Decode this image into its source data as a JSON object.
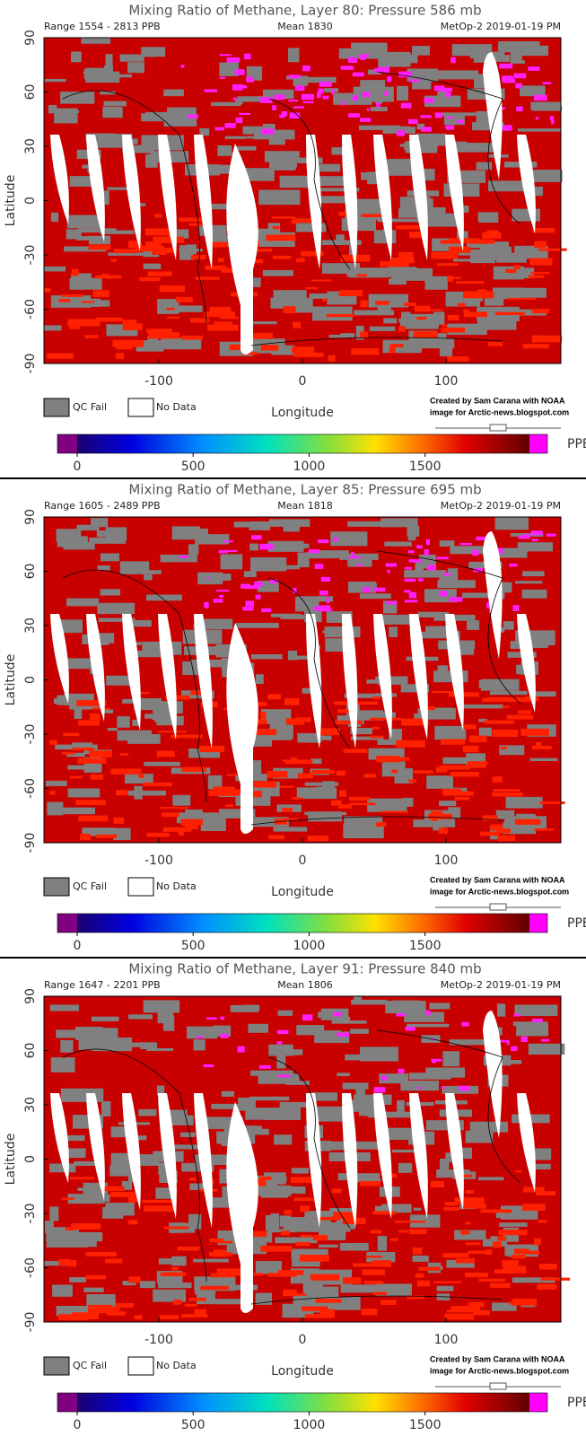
{
  "panels": [
    {
      "title": "Mixing Ratio of Methane, Layer 80: Pressure 586 mb",
      "range": "Range 1554 - 2813 PPB",
      "mean": "Mean 1830",
      "source": "MetOp-2 2019-01-19 PM",
      "x_label": "Longitude",
      "y_label": "Latitude",
      "xlim": [
        -180,
        180
      ],
      "ylim": [
        -90,
        90
      ],
      "xticks": [
        -100,
        0,
        100
      ],
      "yticks": [
        90,
        60,
        30,
        0,
        -30,
        -60,
        -90
      ],
      "legend": [
        "QC Fail",
        "No Data"
      ],
      "credit": [
        "Created by Sam Carana with NOAA",
        "image for Arctic-news.blogspot.com"
      ],
      "colorbar_lim": [
        0,
        1950
      ],
      "colorbar_ticks": [
        0,
        500,
        1000,
        1500
      ],
      "colorbar_unit": "PPB"
    },
    {
      "title": "Mixing Ratio of Methane, Layer 85: Pressure 695 mb",
      "range": "Range 1605 - 2489 PPB",
      "mean": "Mean 1818",
      "source": "MetOp-2 2019-01-19 PM",
      "x_label": "Longitude",
      "y_label": "Latitude",
      "xlim": [
        -180,
        180
      ],
      "ylim": [
        -90,
        90
      ],
      "xticks": [
        -100,
        0,
        100
      ],
      "yticks": [
        90,
        60,
        30,
        0,
        -30,
        -60,
        -90
      ],
      "legend": [
        "QC Fail",
        "No Data"
      ],
      "credit": [
        "Created by Sam Carana with NOAA",
        "image for Arctic-news.blogspot.com"
      ],
      "colorbar_lim": [
        0,
        1950
      ],
      "colorbar_ticks": [
        0,
        500,
        1000,
        1500
      ],
      "colorbar_unit": "PPB"
    },
    {
      "title": "Mixing Ratio of Methane, Layer 91: Pressure 840 mb",
      "range": "Range 1647 - 2201 PPB",
      "mean": "Mean 1806",
      "source": "MetOp-2 2019-01-19 PM",
      "x_label": "Longitude",
      "y_label": "Latitude",
      "xlim": [
        -180,
        180
      ],
      "ylim": [
        -90,
        90
      ],
      "xticks": [
        -100,
        0,
        100
      ],
      "yticks": [
        90,
        60,
        30,
        0,
        -30,
        -60,
        -90
      ],
      "legend": [
        "QC Fail",
        "No Data"
      ],
      "credit": [
        "Created by Sam Carana with NOAA",
        "image for Arctic-news.blogspot.com"
      ],
      "colorbar_lim": [
        0,
        1950
      ],
      "colorbar_ticks": [
        0,
        500,
        1000,
        1500
      ],
      "colorbar_unit": "PPB"
    }
  ]
}
